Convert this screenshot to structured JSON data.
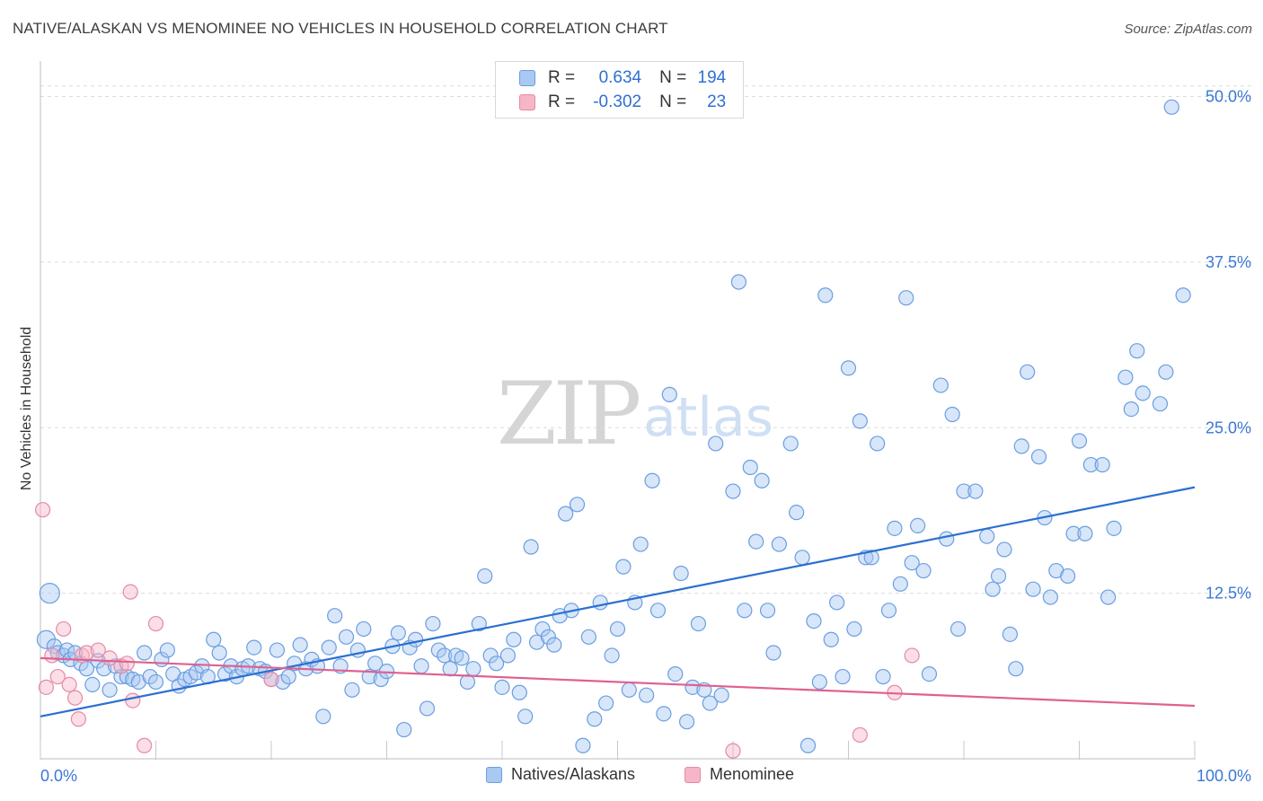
{
  "header": {
    "title": "NATIVE/ALASKAN VS MENOMINEE NO VEHICLES IN HOUSEHOLD CORRELATION CHART",
    "source": "Source: ZipAtlas.com"
  },
  "watermark": {
    "zip": "ZIP",
    "atlas": "atlas"
  },
  "legend": {
    "rows": [
      {
        "r_label": "R =",
        "r_value": "0.634",
        "n_label": "N =",
        "n_value": "194",
        "color": "#a9c8f2"
      },
      {
        "r_label": "R =",
        "r_value": "-0.302",
        "n_label": "N =",
        "n_value": "23",
        "color": "#f7b6c8"
      }
    ]
  },
  "bottom_legend": [
    {
      "label": "Natives/Alaskans",
      "color": "#a9c8f2"
    },
    {
      "label": "Menominee",
      "color": "#f7b6c8"
    }
  ],
  "chart_data": {
    "type": "scatter",
    "ylabel": "No Vehicles in Household",
    "xlim": [
      0,
      100
    ],
    "ylim": [
      0,
      52
    ],
    "x_tick_labels": [
      "0.0%",
      "100.0%"
    ],
    "y_ticks": [
      12.5,
      25.0,
      37.5,
      50.0
    ],
    "y_tick_labels": [
      "12.5%",
      "25.0%",
      "37.5%",
      "50.0%"
    ],
    "grid": true,
    "colors": {
      "blue_fill": "#a9c8f2",
      "blue_stroke": "#6a9ee0",
      "blue_line": "#2a6fd0",
      "pink_fill": "#f7b6c8",
      "pink_stroke": "#e58aa6",
      "pink_line": "#e06090",
      "axis_text": "#3a78d4"
    },
    "series": [
      {
        "name": "Natives/Alaskans",
        "trend": {
          "x": [
            0,
            100
          ],
          "y": [
            3.2,
            20.5
          ]
        },
        "points": [
          [
            0.5,
            9.0
          ],
          [
            0.8,
            12.5
          ],
          [
            1.2,
            8.5
          ],
          [
            1.5,
            8.0
          ],
          [
            2,
            7.8
          ],
          [
            2.3,
            8.2
          ],
          [
            2.6,
            7.5
          ],
          [
            3,
            8.0
          ],
          [
            3.5,
            7.2
          ],
          [
            4,
            6.8
          ],
          [
            4.5,
            5.6
          ],
          [
            5,
            7.4
          ],
          [
            5.5,
            6.8
          ],
          [
            6,
            5.2
          ],
          [
            6.5,
            7.0
          ],
          [
            7,
            6.2
          ],
          [
            7.5,
            6.2
          ],
          [
            8,
            6.0
          ],
          [
            8.5,
            5.8
          ],
          [
            9,
            8.0
          ],
          [
            9.5,
            6.2
          ],
          [
            10,
            5.8
          ],
          [
            10.5,
            7.5
          ],
          [
            11,
            8.2
          ],
          [
            11.5,
            6.4
          ],
          [
            12,
            5.5
          ],
          [
            12.5,
            6.0
          ],
          [
            13,
            6.2
          ],
          [
            13.5,
            6.5
          ],
          [
            14,
            7.0
          ],
          [
            14.5,
            6.2
          ],
          [
            15,
            9.0
          ],
          [
            15.5,
            8.0
          ],
          [
            16,
            6.4
          ],
          [
            16.5,
            7.0
          ],
          [
            17,
            6.2
          ],
          [
            17.5,
            6.8
          ],
          [
            18,
            7.0
          ],
          [
            18.5,
            8.4
          ],
          [
            19,
            6.8
          ],
          [
            19.5,
            6.6
          ],
          [
            20,
            6.0
          ],
          [
            20.5,
            8.2
          ],
          [
            21,
            5.8
          ],
          [
            21.5,
            6.2
          ],
          [
            22,
            7.2
          ],
          [
            22.5,
            8.6
          ],
          [
            23,
            6.8
          ],
          [
            23.5,
            7.5
          ],
          [
            24,
            7.0
          ],
          [
            24.5,
            3.2
          ],
          [
            25,
            8.4
          ],
          [
            25.5,
            10.8
          ],
          [
            26,
            7.0
          ],
          [
            26.5,
            9.2
          ],
          [
            27,
            5.2
          ],
          [
            27.5,
            8.2
          ],
          [
            28,
            9.8
          ],
          [
            28.5,
            6.2
          ],
          [
            29,
            7.2
          ],
          [
            29.5,
            6.0
          ],
          [
            30,
            6.6
          ],
          [
            30.5,
            8.5
          ],
          [
            31,
            9.5
          ],
          [
            31.5,
            2.2
          ],
          [
            32,
            8.4
          ],
          [
            32.5,
            9.0
          ],
          [
            33,
            7.0
          ],
          [
            33.5,
            3.8
          ],
          [
            34,
            10.2
          ],
          [
            34.5,
            8.2
          ],
          [
            35,
            7.8
          ],
          [
            35.5,
            6.8
          ],
          [
            36,
            7.8
          ],
          [
            36.5,
            7.6
          ],
          [
            37,
            5.8
          ],
          [
            37.5,
            6.8
          ],
          [
            38,
            10.2
          ],
          [
            38.5,
            13.8
          ],
          [
            39,
            7.8
          ],
          [
            39.5,
            7.2
          ],
          [
            40,
            5.4
          ],
          [
            40.5,
            7.8
          ],
          [
            41,
            9.0
          ],
          [
            41.5,
            5.0
          ],
          [
            42,
            3.2
          ],
          [
            42.5,
            16.0
          ],
          [
            43,
            8.8
          ],
          [
            43.5,
            9.8
          ],
          [
            44,
            9.2
          ],
          [
            44.5,
            8.6
          ],
          [
            45,
            10.8
          ],
          [
            45.5,
            18.5
          ],
          [
            46,
            11.2
          ],
          [
            46.5,
            19.2
          ],
          [
            47,
            1.0
          ],
          [
            47.5,
            9.2
          ],
          [
            48,
            3.0
          ],
          [
            48.5,
            11.8
          ],
          [
            49,
            4.2
          ],
          [
            49.5,
            7.8
          ],
          [
            50,
            9.8
          ],
          [
            50.5,
            14.5
          ],
          [
            51,
            5.2
          ],
          [
            51.5,
            11.8
          ],
          [
            52,
            16.2
          ],
          [
            52.5,
            4.8
          ],
          [
            53,
            21.0
          ],
          [
            53.5,
            11.2
          ],
          [
            54,
            3.4
          ],
          [
            54.5,
            27.5
          ],
          [
            55,
            6.4
          ],
          [
            55.5,
            14.0
          ],
          [
            56,
            2.8
          ],
          [
            56.5,
            5.4
          ],
          [
            57,
            10.2
          ],
          [
            57.5,
            5.2
          ],
          [
            58,
            4.2
          ],
          [
            58.5,
            23.8
          ],
          [
            59,
            4.8
          ],
          [
            60,
            20.2
          ],
          [
            60.5,
            36.0
          ],
          [
            61,
            11.2
          ],
          [
            61.5,
            22.0
          ],
          [
            62,
            16.4
          ],
          [
            62.5,
            21.0
          ],
          [
            63,
            11.2
          ],
          [
            63.5,
            8.0
          ],
          [
            64,
            16.2
          ],
          [
            65,
            23.8
          ],
          [
            65.5,
            18.6
          ],
          [
            66,
            15.2
          ],
          [
            66.5,
            1.0
          ],
          [
            67,
            10.4
          ],
          [
            67.5,
            5.8
          ],
          [
            68,
            35.0
          ],
          [
            68.5,
            9.0
          ],
          [
            69,
            11.8
          ],
          [
            69.5,
            6.2
          ],
          [
            70,
            29.5
          ],
          [
            70.5,
            9.8
          ],
          [
            71,
            25.5
          ],
          [
            71.5,
            15.2
          ],
          [
            72,
            15.2
          ],
          [
            72.5,
            23.8
          ],
          [
            73,
            6.2
          ],
          [
            73.5,
            11.2
          ],
          [
            74,
            17.4
          ],
          [
            74.5,
            13.2
          ],
          [
            75,
            34.8
          ],
          [
            75.5,
            14.8
          ],
          [
            76,
            17.6
          ],
          [
            76.5,
            14.2
          ],
          [
            77,
            6.4
          ],
          [
            78,
            28.2
          ],
          [
            78.5,
            16.6
          ],
          [
            79,
            26.0
          ],
          [
            79.5,
            9.8
          ],
          [
            80,
            20.2
          ],
          [
            81,
            20.2
          ],
          [
            82,
            16.8
          ],
          [
            82.5,
            12.8
          ],
          [
            83,
            13.8
          ],
          [
            83.5,
            15.8
          ],
          [
            84,
            9.4
          ],
          [
            84.5,
            6.8
          ],
          [
            85,
            23.6
          ],
          [
            85.5,
            29.2
          ],
          [
            86,
            12.8
          ],
          [
            86.5,
            22.8
          ],
          [
            87,
            18.2
          ],
          [
            87.5,
            12.2
          ],
          [
            88,
            14.2
          ],
          [
            89,
            13.8
          ],
          [
            89.5,
            17.0
          ],
          [
            90,
            24.0
          ],
          [
            90.5,
            17.0
          ],
          [
            91,
            22.2
          ],
          [
            92,
            22.2
          ],
          [
            92.5,
            12.2
          ],
          [
            93,
            17.4
          ],
          [
            94,
            28.8
          ],
          [
            94.5,
            26.4
          ],
          [
            95,
            30.8
          ],
          [
            95.5,
            27.6
          ],
          [
            97,
            26.8
          ],
          [
            97.5,
            29.2
          ],
          [
            98,
            49.2
          ],
          [
            99,
            35.0
          ]
        ]
      },
      {
        "name": "Menominee",
        "trend": {
          "x": [
            0,
            100
          ],
          "y": [
            7.6,
            4.0
          ]
        },
        "points": [
          [
            0.2,
            18.8
          ],
          [
            0.5,
            5.4
          ],
          [
            1,
            7.8
          ],
          [
            1.5,
            6.2
          ],
          [
            2,
            9.8
          ],
          [
            2.5,
            5.6
          ],
          [
            3,
            4.6
          ],
          [
            3.3,
            3.0
          ],
          [
            3.6,
            7.8
          ],
          [
            4,
            8.0
          ],
          [
            5,
            8.2
          ],
          [
            6,
            7.6
          ],
          [
            7,
            7.0
          ],
          [
            7.5,
            7.2
          ],
          [
            7.8,
            12.6
          ],
          [
            8,
            4.4
          ],
          [
            9,
            1.0
          ],
          [
            10,
            10.2
          ],
          [
            20,
            6.0
          ],
          [
            60,
            0.6
          ],
          [
            71,
            1.8
          ],
          [
            74,
            5.0
          ],
          [
            75.5,
            7.8
          ]
        ]
      }
    ]
  }
}
